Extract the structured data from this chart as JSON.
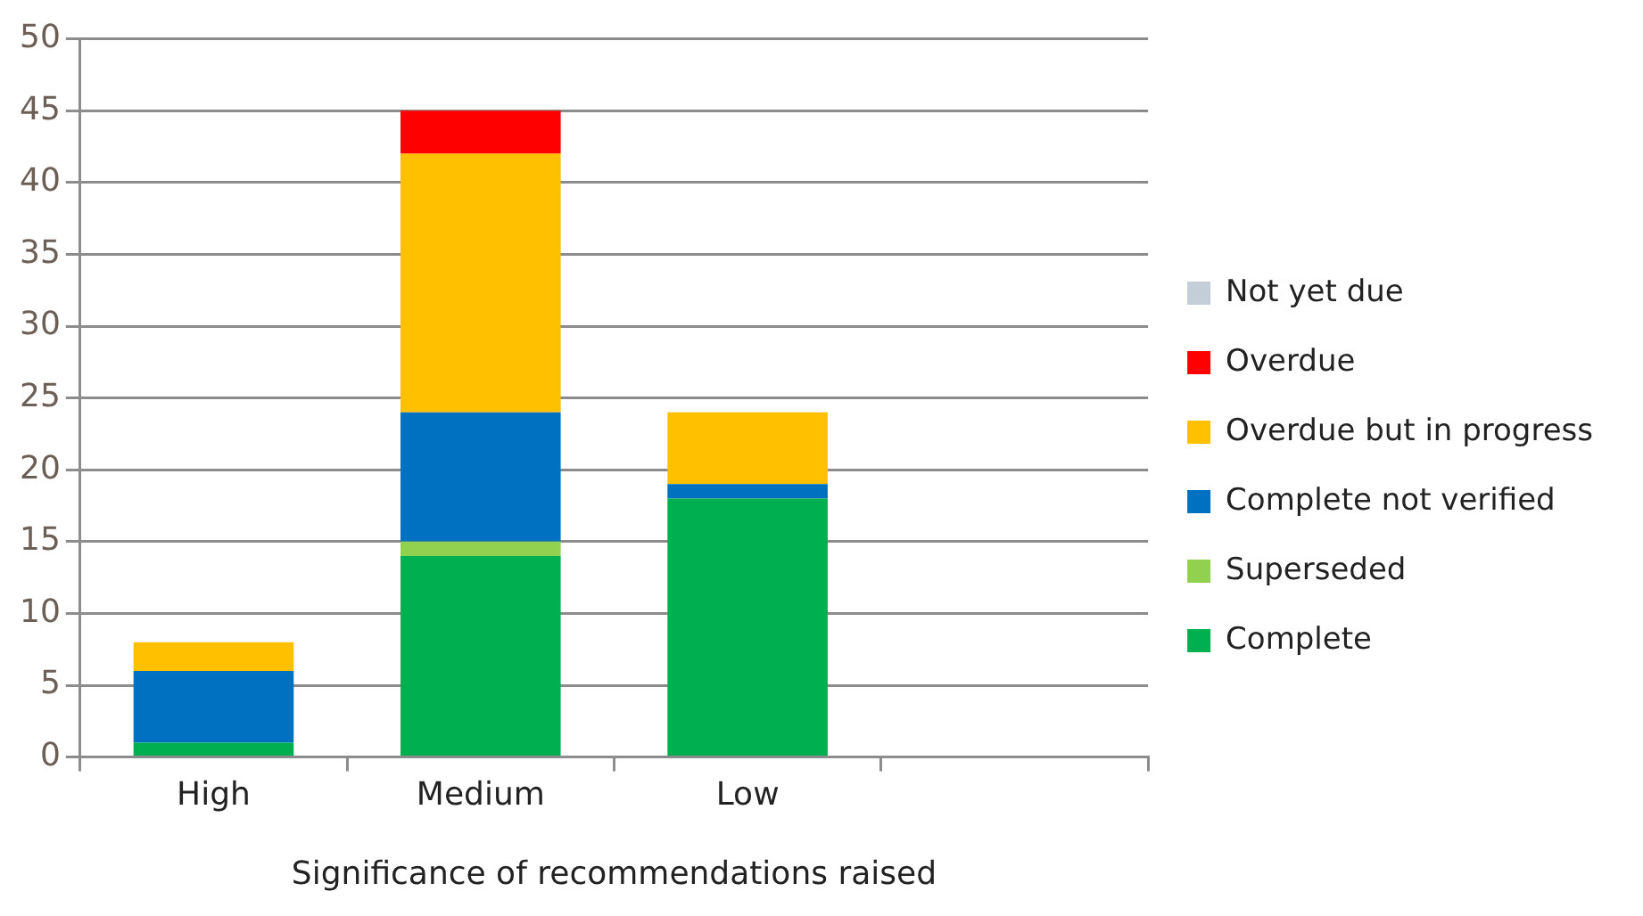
{
  "chart_data": {
    "type": "bar",
    "stacked": true,
    "xlabel": "Significance of recommendations raised",
    "categories": [
      "High",
      "Medium",
      "Low",
      null
    ],
    "series": [
      {
        "name": "Complete",
        "color": "#00b050",
        "values": [
          1,
          14,
          18,
          null
        ]
      },
      {
        "name": "Superseded",
        "color": "#92d050",
        "values": [
          0,
          1,
          0,
          null
        ]
      },
      {
        "name": "Complete not verified",
        "color": "#0070c0",
        "values": [
          5,
          9,
          1,
          null
        ]
      },
      {
        "name": "Overdue but in progress",
        "color": "#ffc000",
        "values": [
          2,
          18,
          5,
          null
        ]
      },
      {
        "name": "Overdue",
        "color": "#ff0000",
        "values": [
          0,
          3,
          0,
          null
        ]
      },
      {
        "name": "Not yet due",
        "color": "#c3ced8",
        "values": [
          0,
          0,
          0,
          null
        ]
      }
    ],
    "ylim": [
      0,
      50
    ],
    "yticks": [
      0,
      5,
      10,
      15,
      20,
      25,
      30,
      35,
      40,
      45,
      50
    ],
    "grid": "y",
    "legend": "right"
  }
}
